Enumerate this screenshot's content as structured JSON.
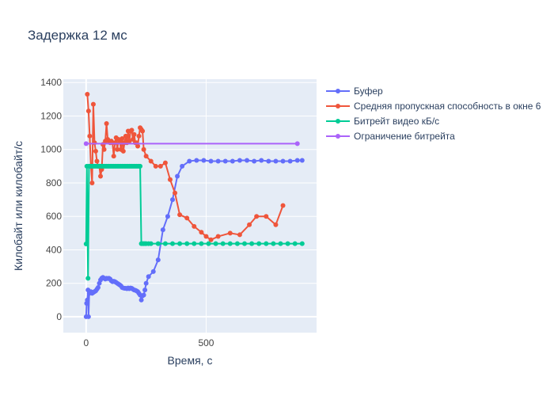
{
  "chart_data": {
    "type": "line",
    "title": "Задержка 12 мс",
    "xlabel": "Время, с",
    "ylabel": "Килобайт или килобайт/с",
    "xlim": [
      -95,
      960
    ],
    "ylim": [
      -95,
      1420
    ],
    "x_ticks": [
      0,
      500
    ],
    "y_ticks": [
      0,
      200,
      400,
      600,
      800,
      1000,
      1200,
      1400
    ],
    "legend_position": "top-right",
    "grid": true,
    "plot_background": "#e5ecf6",
    "series": [
      {
        "name": "Буфер",
        "color": "#636efa",
        "points": [
          [
            0,
            0
          ],
          [
            2,
            80
          ],
          [
            5,
            100
          ],
          [
            8,
            160
          ],
          [
            10,
            0
          ],
          [
            13,
            140
          ],
          [
            16,
            145
          ],
          [
            20,
            150
          ],
          [
            25,
            140
          ],
          [
            30,
            145
          ],
          [
            35,
            150
          ],
          [
            40,
            155
          ],
          [
            45,
            165
          ],
          [
            50,
            175
          ],
          [
            55,
            200
          ],
          [
            60,
            220
          ],
          [
            65,
            230
          ],
          [
            70,
            235
          ],
          [
            75,
            230
          ],
          [
            80,
            225
          ],
          [
            85,
            230
          ],
          [
            90,
            228
          ],
          [
            95,
            230
          ],
          [
            100,
            225
          ],
          [
            105,
            215
          ],
          [
            110,
            210
          ],
          [
            115,
            212
          ],
          [
            120,
            210
          ],
          [
            125,
            205
          ],
          [
            130,
            200
          ],
          [
            135,
            195
          ],
          [
            140,
            190
          ],
          [
            145,
            185
          ],
          [
            150,
            175
          ],
          [
            155,
            172
          ],
          [
            160,
            170
          ],
          [
            165,
            170
          ],
          [
            170,
            168
          ],
          [
            175,
            172
          ],
          [
            180,
            168
          ],
          [
            185,
            172
          ],
          [
            190,
            170
          ],
          [
            195,
            165
          ],
          [
            200,
            160
          ],
          [
            205,
            158
          ],
          [
            210,
            155
          ],
          [
            215,
            150
          ],
          [
            220,
            140
          ],
          [
            225,
            130
          ],
          [
            230,
            100
          ],
          [
            235,
            125
          ],
          [
            240,
            130
          ],
          [
            245,
            160
          ],
          [
            250,
            200
          ],
          [
            260,
            240
          ],
          [
            280,
            270
          ],
          [
            300,
            340
          ],
          [
            320,
            520
          ],
          [
            340,
            600
          ],
          [
            360,
            700
          ],
          [
            380,
            840
          ],
          [
            400,
            900
          ],
          [
            430,
            930
          ],
          [
            460,
            935
          ],
          [
            490,
            935
          ],
          [
            520,
            930
          ],
          [
            550,
            930
          ],
          [
            580,
            930
          ],
          [
            610,
            930
          ],
          [
            640,
            935
          ],
          [
            670,
            935
          ],
          [
            700,
            930
          ],
          [
            730,
            935
          ],
          [
            760,
            930
          ],
          [
            790,
            930
          ],
          [
            820,
            930
          ],
          [
            850,
            930
          ],
          [
            880,
            935
          ],
          [
            900,
            935
          ]
        ]
      },
      {
        "name": "Средняя пропускная способность в окне 6",
        "color": "#ef553b",
        "points": [
          [
            5,
            1330
          ],
          [
            10,
            1230
          ],
          [
            15,
            1080
          ],
          [
            20,
            900
          ],
          [
            25,
            800
          ],
          [
            30,
            1270
          ],
          [
            35,
            1040
          ],
          [
            40,
            990
          ],
          [
            45,
            930
          ],
          [
            50,
            900
          ],
          [
            55,
            900
          ],
          [
            60,
            840
          ],
          [
            65,
            880
          ],
          [
            70,
            1030
          ],
          [
            75,
            1000
          ],
          [
            80,
            1050
          ],
          [
            85,
            1155
          ],
          [
            90,
            1060
          ],
          [
            95,
            1050
          ],
          [
            100,
            1040
          ],
          [
            105,
            1050
          ],
          [
            110,
            1040
          ],
          [
            115,
            960
          ],
          [
            120,
            1040
          ],
          [
            125,
            1070
          ],
          [
            130,
            1000
          ],
          [
            135,
            1060
          ],
          [
            140,
            1050
          ],
          [
            145,
            1000
          ],
          [
            150,
            1065
          ],
          [
            155,
            990
          ],
          [
            160,
            1040
          ],
          [
            165,
            1080
          ],
          [
            170,
            1040
          ],
          [
            175,
            1110
          ],
          [
            180,
            1050
          ],
          [
            185,
            1110
          ],
          [
            190,
            1115
          ],
          [
            195,
            1060
          ],
          [
            200,
            1090
          ],
          [
            205,
            1040
          ],
          [
            210,
            1040
          ],
          [
            215,
            1020
          ],
          [
            220,
            1080
          ],
          [
            225,
            1130
          ],
          [
            230,
            1120
          ],
          [
            235,
            1110
          ],
          [
            240,
            1000
          ],
          [
            250,
            960
          ],
          [
            270,
            930
          ],
          [
            290,
            900
          ],
          [
            310,
            900
          ],
          [
            330,
            920
          ],
          [
            350,
            820
          ],
          [
            370,
            740
          ],
          [
            390,
            610
          ],
          [
            420,
            590
          ],
          [
            450,
            540
          ],
          [
            480,
            505
          ],
          [
            500,
            480
          ],
          [
            520,
            460
          ],
          [
            550,
            480
          ],
          [
            600,
            500
          ],
          [
            640,
            490
          ],
          [
            680,
            550
          ],
          [
            710,
            600
          ],
          [
            750,
            600
          ],
          [
            790,
            550
          ],
          [
            820,
            665
          ]
        ]
      },
      {
        "name": "Битрейт видео кБ/с",
        "color": "#00cc96",
        "points": [
          [
            0,
            435
          ],
          [
            3,
            900
          ],
          [
            8,
            230
          ],
          [
            12,
            900
          ],
          [
            15,
            900
          ],
          [
            20,
            900
          ],
          [
            25,
            900
          ],
          [
            30,
            900
          ],
          [
            35,
            900
          ],
          [
            40,
            900
          ],
          [
            45,
            900
          ],
          [
            50,
            900
          ],
          [
            55,
            900
          ],
          [
            60,
            900
          ],
          [
            65,
            900
          ],
          [
            70,
            900
          ],
          [
            75,
            900
          ],
          [
            80,
            900
          ],
          [
            85,
            900
          ],
          [
            90,
            900
          ],
          [
            95,
            900
          ],
          [
            100,
            900
          ],
          [
            105,
            900
          ],
          [
            110,
            900
          ],
          [
            115,
            900
          ],
          [
            120,
            900
          ],
          [
            125,
            900
          ],
          [
            130,
            900
          ],
          [
            135,
            900
          ],
          [
            140,
            900
          ],
          [
            145,
            900
          ],
          [
            150,
            900
          ],
          [
            155,
            900
          ],
          [
            160,
            900
          ],
          [
            165,
            900
          ],
          [
            170,
            900
          ],
          [
            175,
            900
          ],
          [
            180,
            900
          ],
          [
            185,
            900
          ],
          [
            190,
            900
          ],
          [
            195,
            900
          ],
          [
            200,
            900
          ],
          [
            205,
            900
          ],
          [
            210,
            900
          ],
          [
            215,
            900
          ],
          [
            220,
            900
          ],
          [
            225,
            900
          ],
          [
            230,
            437
          ],
          [
            235,
            437
          ],
          [
            240,
            437
          ],
          [
            245,
            437
          ],
          [
            250,
            437
          ],
          [
            260,
            437
          ],
          [
            270,
            437
          ],
          [
            300,
            437
          ],
          [
            330,
            437
          ],
          [
            360,
            437
          ],
          [
            390,
            437
          ],
          [
            420,
            437
          ],
          [
            450,
            437
          ],
          [
            480,
            437
          ],
          [
            510,
            437
          ],
          [
            540,
            437
          ],
          [
            570,
            437
          ],
          [
            600,
            437
          ],
          [
            630,
            437
          ],
          [
            660,
            437
          ],
          [
            690,
            437
          ],
          [
            720,
            437
          ],
          [
            750,
            437
          ],
          [
            780,
            437
          ],
          [
            810,
            437
          ],
          [
            840,
            437
          ],
          [
            870,
            437
          ],
          [
            900,
            437
          ]
        ]
      },
      {
        "name": "Ограничение битрейта",
        "color": "#ab63fa",
        "points": [
          [
            0,
            1035
          ],
          [
            880,
            1035
          ]
        ]
      }
    ]
  }
}
